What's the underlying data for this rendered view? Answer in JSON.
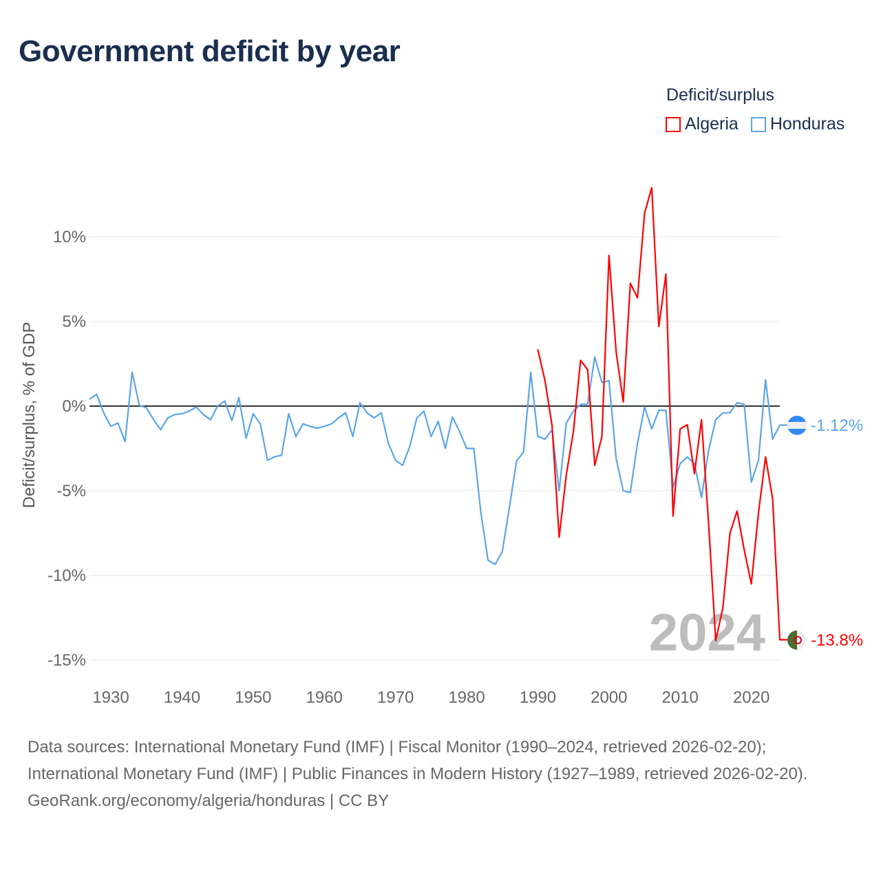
{
  "title": "Government deficit by year",
  "legend": {
    "title": "Deficit/surplus",
    "items": [
      {
        "name": "Algeria",
        "color": "#ff0000"
      },
      {
        "name": "Honduras",
        "color": "#5aa5ea"
      }
    ]
  },
  "year_label": "2024",
  "end_labels": {
    "algeria": "-13.8%",
    "honduras": "-1.12%"
  },
  "footer": {
    "sources": "Data sources: International Monetary Fund (IMF) | Fiscal Monitor (1990–2024, retrieved 2026-02-20); International Monetary Fund (IMF) | Public Finances in Modern History (1927–1989, retrieved 2026-02-20).",
    "credit": "GeoRank.org/economy/algeria/honduras | CC BY"
  },
  "chart_data": {
    "type": "line",
    "title": "Government deficit by year",
    "xlabel": "",
    "ylabel": "Deficit/surplus, % of GDP",
    "xlim": [
      1927,
      2024
    ],
    "ylim": [
      -16,
      14
    ],
    "yticks": [
      {
        "v": 10,
        "label": "10%"
      },
      {
        "v": 5,
        "label": "5%"
      },
      {
        "v": 0,
        "label": "0%"
      },
      {
        "v": -5,
        "label": "-5%"
      },
      {
        "v": -10,
        "label": "-10%"
      },
      {
        "v": -15,
        "label": "-15%"
      }
    ],
    "xticks": [
      1930,
      1940,
      1950,
      1960,
      1970,
      1980,
      1990,
      2000,
      2010,
      2020
    ],
    "series": [
      {
        "name": "Honduras",
        "color": "#5aa5ea",
        "start": 1927,
        "values": [
          0.4,
          0.7,
          -0.4,
          -1.2,
          -1.0,
          -2.1,
          2.0,
          0.05,
          -0.1,
          -0.8,
          -1.4,
          -0.7,
          -0.5,
          -0.45,
          -0.3,
          -0.05,
          -0.5,
          -0.8,
          0,
          0.3,
          -0.85,
          0.5,
          -1.9,
          -0.45,
          -1.05,
          -3.2,
          -3.0,
          -2.9,
          -0.45,
          -1.8,
          -1.05,
          -1.2,
          -1.3,
          -1.2,
          -1.05,
          -0.7,
          -0.4,
          -1.8,
          0.2,
          -0.4,
          -0.7,
          -0.4,
          -2.2,
          -3.2,
          -3.5,
          -2.4,
          -0.7,
          -0.3,
          -1.8,
          -0.9,
          -2.5,
          -0.65,
          -1.5,
          -2.5,
          -2.5,
          -6.3,
          -9.1,
          -9.35,
          -8.6,
          -6.0,
          -3.25,
          -2.7,
          2.0,
          -1.8,
          -1.95,
          -1.4,
          -5.0,
          -1.0,
          -0.3,
          0.1,
          0.1,
          2.9,
          1.4,
          1.5,
          -3.1,
          -5.0,
          -5.1,
          -2.2,
          -0.05,
          -1.35,
          -0.25,
          -0.25,
          -4.8,
          -3.4,
          -3.0,
          -3.4,
          -5.4,
          -2.6,
          -0.8,
          -0.4,
          -0.4,
          0.2,
          0.1,
          -4.5,
          -3.2,
          1.55,
          -1.95,
          -1.12
        ]
      },
      {
        "name": "Algeria",
        "color": "#ff0000",
        "start": 1990,
        "values": [
          3.35,
          1.5,
          -1.15,
          -7.75,
          -4.05,
          -1.5,
          2.7,
          2.15,
          -3.5,
          -1.8,
          8.9,
          3.2,
          0.25,
          7.25,
          6.4,
          11.4,
          12.9,
          4.7,
          7.8,
          -6.5,
          -1.35,
          -1.1,
          -4.0,
          -0.8,
          -7.0,
          -13.85,
          -11.9,
          -7.5,
          -6.2,
          -8.5,
          -10.5,
          -6.3,
          -3.0,
          -5.5,
          -13.8
        ]
      }
    ]
  }
}
